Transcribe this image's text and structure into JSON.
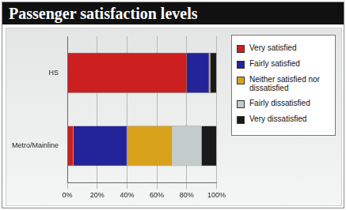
{
  "chart_data": {
    "type": "bar",
    "title": "Passenger satisfaction levels",
    "orientation": "horizontal",
    "stacked": true,
    "grid": true,
    "legend": "right",
    "categories": [
      "HS",
      "Metro/Mainline"
    ],
    "series": [
      {
        "name": "Very satisfied",
        "color": "#cc2020",
        "values": [
          80,
          4
        ]
      },
      {
        "name": "Fairly satisfied",
        "color": "#23239a",
        "values": [
          15,
          36
        ]
      },
      {
        "name": "Neither satisfied nor dissatisfied",
        "color": "#d9a21b",
        "values": [
          1,
          30
        ]
      },
      {
        "name": "Fairly dissatisfied",
        "color": "#c3cbcb",
        "values": [
          0,
          20
        ]
      },
      {
        "name": "Very dissatisfied",
        "color": "#1a1a1a",
        "values": [
          4,
          10
        ]
      }
    ],
    "xlim": [
      0,
      100
    ],
    "xticks": [
      {
        "value": 0,
        "label": "0%"
      },
      {
        "value": 20,
        "label": "20%"
      },
      {
        "value": 40,
        "label": "40%"
      },
      {
        "value": 60,
        "label": "60%"
      },
      {
        "value": 80,
        "label": "80%"
      },
      {
        "value": 100,
        "label": "100%"
      }
    ]
  }
}
